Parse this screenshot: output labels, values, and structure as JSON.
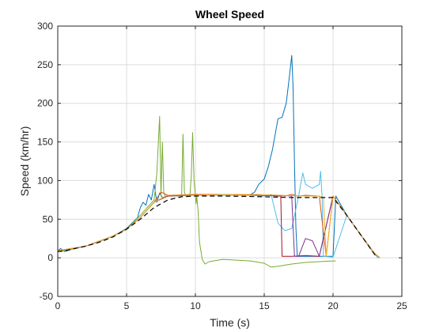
{
  "chart_data": {
    "type": "line",
    "title": "Wheel Speed",
    "xlabel": "Time (s)",
    "ylabel": "Speed (km/hr)",
    "xlim": [
      0,
      25
    ],
    "ylim": [
      -50,
      300
    ],
    "xticks": [
      0,
      5,
      10,
      15,
      20,
      25
    ],
    "yticks": [
      -50,
      0,
      50,
      100,
      150,
      200,
      250,
      300
    ],
    "grid": true,
    "legend": "none",
    "reference_style": "black dashed",
    "series": [
      {
        "color": "#000000",
        "dashed": true,
        "x": [
          0,
          0.5,
          1,
          2,
          3,
          4,
          5,
          6,
          7,
          8,
          9,
          10,
          12,
          15,
          17,
          18,
          20,
          21,
          22,
          23,
          23.2
        ],
        "y": [
          8,
          9,
          11,
          15,
          20,
          27,
          37,
          50,
          65,
          75,
          79,
          80,
          80,
          79,
          78,
          78,
          78,
          55,
          30,
          5,
          0
        ]
      },
      {
        "color": "#0072BD",
        "x": [
          0,
          0.2,
          0.5,
          1,
          2,
          3,
          4,
          5,
          5.8,
          6,
          6.2,
          6.4,
          6.6,
          6.8,
          7,
          7.2,
          7.4,
          7.6,
          8,
          8.5,
          9,
          10,
          12,
          14,
          14.3,
          14.6,
          15,
          15.3,
          15.6,
          16,
          16.3,
          16.6,
          16.8,
          17,
          17.1,
          17.2,
          17.3,
          17.4,
          17.6,
          18,
          19,
          20,
          20.2,
          21,
          22,
          23,
          23.3
        ],
        "y": [
          9,
          12,
          8,
          11,
          15,
          21,
          28,
          38,
          52,
          65,
          72,
          68,
          82,
          75,
          95,
          72,
          84,
          78,
          80,
          81,
          81,
          82,
          82,
          82,
          85,
          95,
          102,
          118,
          140,
          180,
          182,
          200,
          230,
          262,
          220,
          120,
          40,
          2,
          2,
          2,
          2,
          2,
          80,
          55,
          30,
          5,
          0
        ]
      },
      {
        "color": "#77AC30",
        "x": [
          0,
          1,
          2,
          3,
          4,
          5,
          6,
          6.5,
          7,
          7.2,
          7.4,
          7.5,
          7.6,
          7.7,
          7.8,
          8,
          8.5,
          9,
          9.1,
          9.2,
          9.3,
          9.5,
          9.6,
          9.7,
          9.8,
          9.9,
          10,
          10.05,
          10.1,
          10.2,
          10.3,
          10.5,
          10.7,
          11,
          12,
          13,
          14,
          15,
          15.5,
          16,
          17,
          18,
          19,
          20,
          20.2
        ],
        "y": [
          8,
          11,
          15,
          21,
          28,
          37,
          55,
          65,
          75,
          110,
          183,
          80,
          150,
          85,
          80,
          80,
          80,
          80,
          160,
          85,
          80,
          80,
          80,
          105,
          162,
          100,
          80,
          70,
          80,
          60,
          20,
          -2,
          -8,
          -5,
          -2,
          -3,
          -4,
          -7,
          -12,
          -11,
          -8,
          -6,
          -5,
          -4,
          -4
        ]
      },
      {
        "color": "#4DBEEE",
        "x": [
          0,
          2,
          4,
          5,
          6,
          7,
          8,
          10,
          12,
          14,
          15,
          15.5,
          15.8,
          16,
          16.5,
          17,
          17.5,
          17.8,
          18,
          18.5,
          19,
          19.1,
          19.2,
          19.3,
          20,
          21,
          22,
          23,
          23.3
        ],
        "y": [
          9,
          15,
          28,
          37,
          52,
          72,
          80,
          81,
          81,
          81,
          80,
          82,
          60,
          45,
          35,
          38,
          80,
          110,
          95,
          90,
          95,
          112,
          80,
          2,
          1,
          55,
          30,
          5,
          0
        ]
      },
      {
        "color": "#D95319",
        "x": [
          0,
          2,
          4,
          5,
          6,
          7,
          7.5,
          8,
          10,
          12,
          14,
          16,
          16.5,
          17,
          17.5,
          18,
          19,
          19.5,
          20,
          21,
          22,
          23,
          23.4
        ],
        "y": [
          9,
          15,
          28,
          37,
          52,
          72,
          85,
          81,
          82,
          82,
          81,
          81,
          80,
          82,
          80,
          81,
          80,
          2,
          80,
          55,
          30,
          6,
          0
        ]
      },
      {
        "color": "#A2142F",
        "x": [
          0,
          2,
          4,
          5,
          6,
          7,
          8,
          10,
          12,
          14,
          15,
          16,
          16.2,
          16.3,
          17,
          18,
          19,
          20,
          21,
          22,
          23,
          23.4
        ],
        "y": [
          9,
          15,
          28,
          37,
          52,
          72,
          80,
          81,
          82,
          82,
          81,
          80,
          80,
          2,
          2,
          3,
          2,
          80,
          55,
          30,
          6,
          0
        ]
      },
      {
        "color": "#7E2F8E",
        "x": [
          0,
          2,
          4,
          5,
          6,
          7,
          8,
          10,
          12,
          14,
          16,
          17,
          17.1,
          17.2,
          17.5,
          18,
          18.5,
          19,
          20,
          21,
          22,
          23,
          23.4
        ],
        "y": [
          9,
          15,
          28,
          37,
          52,
          72,
          81,
          81,
          82,
          82,
          81,
          80,
          40,
          2,
          2,
          25,
          22,
          2,
          80,
          55,
          30,
          6,
          0
        ]
      },
      {
        "color": "#EDB120",
        "x": [
          0,
          2,
          4,
          5,
          6,
          7,
          8,
          10,
          12,
          14,
          16,
          18,
          19,
          19.3,
          19.5,
          20,
          21,
          22,
          23,
          23.4
        ],
        "y": [
          9,
          15,
          28,
          37,
          52,
          72,
          81,
          81,
          82,
          82,
          81,
          80,
          80,
          78,
          2,
          80,
          55,
          30,
          6,
          0
        ]
      }
    ]
  }
}
